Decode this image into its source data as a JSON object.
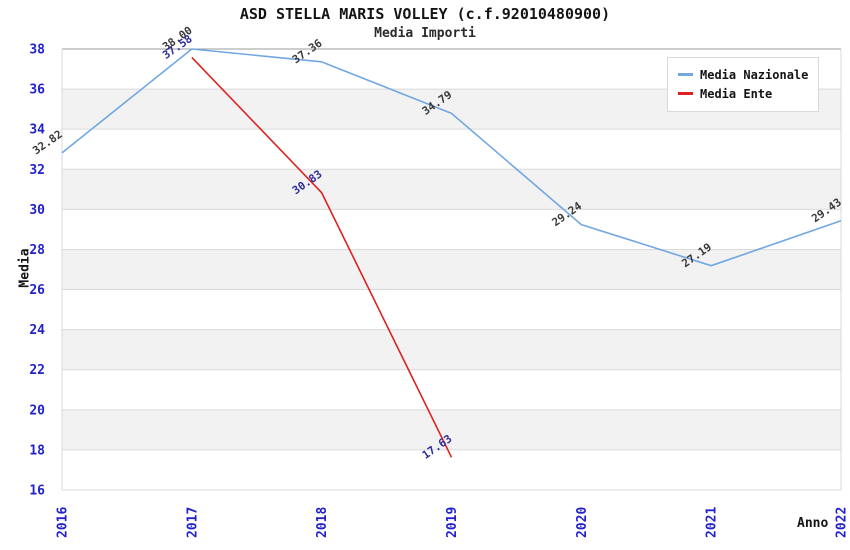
{
  "title": "ASD STELLA MARIS VOLLEY (c.f.92010480900)",
  "subtitle": "Media Importi",
  "colors": {
    "background": "#ffffff",
    "band": "#f2f2f2",
    "grid": "#dadada",
    "grid_top": "#9b9b9b",
    "axis_tick_text": "#2121cc",
    "axis_title_text": "#141414",
    "series_nazionale": "#72a7e2",
    "series_ente": "#de2121",
    "label_nazionale": "#3a3a3a",
    "label_ente": "#2e2e9b"
  },
  "legend": {
    "position": "top-right",
    "items": [
      {
        "label": "Media Nazionale",
        "color": "#72a7e2"
      },
      {
        "label": "Media Ente",
        "color": "#de2121"
      }
    ]
  },
  "chart_data": {
    "type": "line",
    "title": "ASD STELLA MARIS VOLLEY (c.f.92010480900)",
    "subtitle": "Media Importi",
    "xlabel": "Anno",
    "ylabel": "Media",
    "categories": [
      "2016",
      "2017",
      "2018",
      "2019",
      "2020",
      "2021",
      "2022"
    ],
    "ylim": [
      16,
      38
    ],
    "ytick_step": 2,
    "grid": "horizontal-gridlines-with-alternating-bands",
    "legend_position": "top-right",
    "point_labels_visible": true,
    "series": [
      {
        "name": "Media Nazionale",
        "color": "#72a7e2",
        "label_color": "#3a3a3a",
        "values": [
          32.82,
          38.0,
          37.36,
          34.79,
          29.24,
          27.19,
          29.43
        ]
      },
      {
        "name": "Media Ente",
        "color": "#de2121",
        "label_color": "#2e2e9b",
        "values": [
          null,
          37.58,
          30.83,
          17.63,
          null,
          null,
          null
        ]
      }
    ]
  }
}
